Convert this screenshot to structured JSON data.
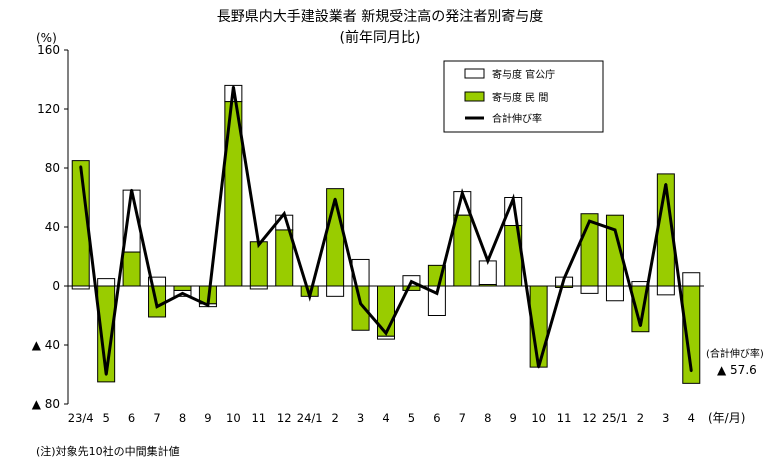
{
  "chart_data": {
    "type": "bar",
    "title": "長野県内大手建設業者 新規受注高の発注者別寄与度",
    "subtitle": "(前年同月比)",
    "ylabel": "(%)",
    "xlabel": "(年/月)",
    "ylim": [
      -80,
      160
    ],
    "y_ticks": [
      160,
      120,
      80,
      40,
      0,
      -40,
      -80
    ],
    "y_tick_labels": [
      "160",
      "120",
      "80",
      "40",
      "0",
      "▲ 40",
      "▲ 80"
    ],
    "categories": [
      "23/4",
      "5",
      "6",
      "7",
      "8",
      "9",
      "10",
      "11",
      "12",
      "24/1",
      "2",
      "3",
      "4",
      "5",
      "6",
      "7",
      "8",
      "9",
      "10",
      "11",
      "12",
      "25/1",
      "2",
      "3",
      "4"
    ],
    "series": [
      {
        "name": "寄与度 官公庁",
        "kind": "bar",
        "color": "#ffffff",
        "values": [
          -2,
          5,
          42,
          6,
          -4,
          -2,
          11,
          -2,
          10,
          0,
          -7,
          18,
          -2,
          7,
          -20,
          16,
          16,
          19,
          0,
          6,
          -5,
          -10,
          3,
          -6,
          9
        ]
      },
      {
        "name": "寄与度 民 間",
        "kind": "bar",
        "color": "#99cc00",
        "values": [
          85,
          -65,
          23,
          -21,
          -3,
          -12,
          125,
          30,
          38,
          -7,
          66,
          -30,
          -34,
          -3,
          14,
          48,
          1,
          41,
          -55,
          -1,
          49,
          48,
          -31,
          76,
          -66
        ]
      },
      {
        "name": "合計伸び率",
        "kind": "line",
        "color": "#000000",
        "values": [
          81,
          -60,
          65,
          -14,
          -5,
          -13,
          135,
          28,
          49,
          -7,
          59,
          -12,
          -32,
          3,
          -5,
          63,
          17,
          59,
          -55,
          5,
          44,
          38,
          -27,
          69,
          -57.6
        ]
      }
    ],
    "legend_position": "top-right",
    "grid": false,
    "annotation": {
      "label": "(合計伸び率)",
      "value": "▲ 57.6"
    },
    "note": "(注)対象先10社の中間集計値"
  }
}
